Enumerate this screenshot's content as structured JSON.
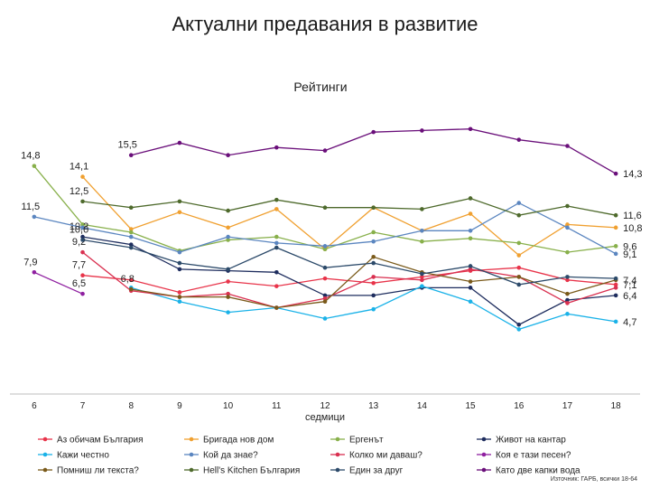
{
  "title": "Актуални предавания в развитие",
  "subtitle": "Рейтинги",
  "source": "Източник: ГАРБ, всички 18-64",
  "chart_data": {
    "type": "line",
    "title": "Актуални предавания в развитие",
    "subtitle": "Рейтинги",
    "xlabel": "седмици",
    "ylabel": "",
    "x": [
      6,
      7,
      8,
      9,
      10,
      11,
      12,
      13,
      14,
      15,
      16,
      17,
      18
    ],
    "ylim": [
      0,
      20
    ],
    "legend_position": "bottom",
    "series": [
      {
        "name": "Аз обичам България",
        "color": "#e8344a",
        "values": [
          null,
          7.7,
          7.4,
          6.6,
          7.3,
          7.0,
          7.5,
          7.2,
          7.6,
          8.0,
          8.2,
          7.4,
          7.1
        ],
        "labels": [
          [
            1,
            "7,7"
          ],
          [
            12,
            "7,1"
          ]
        ]
      },
      {
        "name": "Бригада нов дом",
        "color": "#f0a030",
        "values": [
          null,
          14.1,
          10.7,
          11.8,
          10.8,
          12.0,
          9.4,
          12.1,
          10.6,
          11.7,
          9.0,
          11.0,
          10.8
        ],
        "labels": [
          [
            1,
            "14,1"
          ],
          [
            12,
            "10,8"
          ]
        ]
      },
      {
        "name": "Ергенът",
        "color": "#88b04b",
        "values": [
          14.8,
          11.0,
          10.5,
          9.3,
          10.0,
          10.2,
          9.4,
          10.5,
          9.9,
          10.1,
          9.8,
          9.2,
          9.6
        ],
        "labels": [
          [
            0,
            "14,8"
          ],
          [
            12,
            "9,6"
          ]
        ]
      },
      {
        "name": "Живот на кантар",
        "color": "#1e2d5e",
        "values": [
          null,
          10.2,
          9.7,
          8.1,
          8.0,
          7.9,
          6.4,
          6.4,
          6.9,
          6.9,
          4.5,
          6.1,
          6.4
        ],
        "labels": [
          [
            1,
            "10,2"
          ],
          [
            12,
            "6,4"
          ]
        ]
      },
      {
        "name": "Кажи честно",
        "color": "#1ab2e8",
        "values": [
          null,
          null,
          6.9,
          6.0,
          5.3,
          5.6,
          4.9,
          5.5,
          7.0,
          6.0,
          4.2,
          5.2,
          4.7
        ],
        "labels": [
          [
            12,
            "4,7"
          ]
        ]
      },
      {
        "name": "Кой да знае?",
        "color": "#5b86c0",
        "values": [
          11.5,
          10.8,
          10.2,
          9.2,
          10.2,
          9.8,
          9.6,
          9.9,
          10.6,
          10.6,
          12.4,
          10.8,
          9.1
        ],
        "labels": [
          [
            0,
            "11,5"
          ],
          [
            12,
            "9,1"
          ]
        ]
      },
      {
        "name": "Колко ми даваш?",
        "color": "#d93050",
        "values": [
          null,
          9.2,
          6.7,
          6.3,
          6.5,
          5.6,
          6.2,
          7.6,
          7.4,
          8.1,
          7.6,
          5.9,
          6.9
        ],
        "labels": [
          [
            1,
            "9,2"
          ]
        ]
      },
      {
        "name": "Коя е тази песен?",
        "color": "#8f1fa0",
        "values": [
          7.9,
          6.5,
          null,
          null,
          null,
          null,
          null,
          null,
          null,
          null,
          null,
          null,
          null
        ],
        "labels": [
          [
            0,
            "7,9"
          ],
          [
            1,
            "6,5"
          ]
        ]
      },
      {
        "name": "Помниш ли текста?",
        "color": "#7a5a1a",
        "values": [
          null,
          null,
          6.8,
          6.3,
          6.3,
          5.6,
          6.0,
          8.9,
          7.9,
          7.3,
          7.6,
          6.5,
          7.4
        ],
        "labels": [
          [
            2,
            "6,8"
          ],
          [
            12,
            "7,4"
          ]
        ]
      },
      {
        "name": "Hell's Kitchen България",
        "color": "#4e6a2c",
        "values": [
          null,
          12.5,
          12.1,
          12.5,
          11.9,
          12.6,
          12.1,
          12.1,
          12.0,
          12.7,
          11.6,
          12.2,
          11.6
        ],
        "labels": [
          [
            1,
            "12,5"
          ],
          [
            12,
            "11,6"
          ]
        ]
      },
      {
        "name": "Един за друг",
        "color": "#2c4a6a",
        "values": [
          null,
          10.0,
          9.5,
          8.5,
          8.1,
          9.5,
          8.2,
          8.5,
          7.8,
          8.3,
          7.1,
          7.6,
          7.5
        ],
        "labels": [
          [
            1,
            "10,0"
          ]
        ]
      },
      {
        "name": "Като две капки вода",
        "color": "#6a0f7a",
        "values": [
          null,
          null,
          15.5,
          16.3,
          15.5,
          16.0,
          15.8,
          17.0,
          17.1,
          17.2,
          16.5,
          16.1,
          14.3
        ],
        "labels": [
          [
            2,
            "15,5"
          ],
          [
            12,
            "14,3"
          ]
        ]
      }
    ]
  }
}
